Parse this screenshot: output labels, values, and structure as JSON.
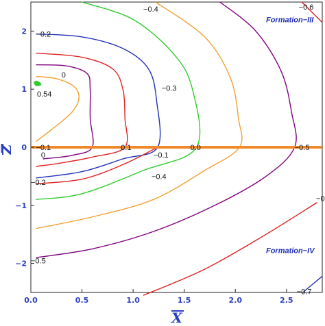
{
  "chart_data": {
    "type": "contour",
    "title": "",
    "xlabel": "X",
    "ylabel": "Z",
    "xlim": [
      0,
      2.85
    ],
    "ylim": [
      -2.5,
      2.5
    ],
    "x_ticks": [
      "0.0",
      "0.5",
      "1.0",
      "1.5",
      "2.0",
      "2.5"
    ],
    "x_tick_values": [
      0,
      0.5,
      1.0,
      1.5,
      2.0,
      2.5
    ],
    "y_ticks": [
      "−2",
      "−1",
      "0",
      "1",
      "2"
    ],
    "y_tick_values": [
      -2,
      -1,
      0,
      1,
      2
    ],
    "annotations": [
      {
        "text": "Formation−III",
        "x": 2.3,
        "y": 2.15
      },
      {
        "text": "Formation−IV",
        "x": 2.3,
        "y": -1.82
      }
    ],
    "boundary_line": {
      "z": 0,
      "color": "#f0892a"
    },
    "series": [
      {
        "label": "0.54",
        "color": "#2ecc2e",
        "points": [
          [
            0.03,
            1.12
          ],
          [
            0.06,
            1.14
          ],
          [
            0.1,
            1.08
          ],
          [
            0.05,
            1.06
          ],
          [
            0.03,
            1.12
          ]
        ],
        "label_at": [
          0.06,
          0.92
        ]
      },
      {
        "label": "0",
        "color": "#f0a030",
        "points": [
          [
            0.05,
            0.1
          ],
          [
            0.2,
            0.3
          ],
          [
            0.4,
            0.6
          ],
          [
            0.47,
            0.85
          ],
          [
            0.42,
            1.05
          ],
          [
            0.25,
            1.18
          ],
          [
            0.05,
            1.22
          ]
        ],
        "label_at": [
          0.3,
          1.25
        ]
      },
      {
        "label": "0",
        "color": "#800080",
        "points": [
          [
            0.05,
            1.42
          ],
          [
            0.35,
            1.4
          ],
          [
            0.55,
            1.27
          ],
          [
            0.58,
            1.0
          ],
          [
            0.58,
            0.5
          ],
          [
            0.6,
            0.0
          ],
          [
            0.4,
            -0.14
          ],
          [
            0.12,
            -0.2
          ]
        ],
        "label_at": [
          0.1,
          -0.13
        ]
      },
      {
        "label": "0.1",
        "color": "#e02020",
        "points": [
          [
            0.05,
            1.62
          ],
          [
            0.5,
            1.55
          ],
          [
            0.8,
            1.35
          ],
          [
            0.9,
            1.0
          ],
          [
            0.92,
            0.5
          ],
          [
            0.92,
            0.0
          ],
          [
            0.6,
            -0.17
          ],
          [
            0.3,
            -0.27
          ],
          [
            0.05,
            -0.33
          ]
        ],
        "label_at": [
          0.88,
          0.0
        ]
      },
      {
        "label": "−0.1",
        "color": "#800080",
        "points": [
          [
            0.05,
            0.0
          ],
          [
            0.0,
            0.0
          ]
        ],
        "label_at": [
          0.0,
          0.0
        ]
      },
      {
        "label": "−0.2",
        "color": "#1f2fb8",
        "points": [
          [
            0.05,
            1.95
          ],
          [
            0.5,
            1.9
          ],
          [
            0.9,
            1.7
          ],
          [
            1.15,
            1.35
          ],
          [
            1.23,
            0.8
          ],
          [
            1.24,
            0.0
          ],
          [
            0.9,
            -0.2
          ],
          [
            0.5,
            -0.42
          ],
          [
            0.05,
            -0.53
          ]
        ],
        "label_at": [
          0.05,
          1.95
        ]
      },
      {
        "label": "−0.2",
        "color": "#e02020",
        "points": [
          [
            0.05,
            -0.63
          ],
          [
            0.5,
            -0.55
          ],
          [
            0.9,
            -0.3
          ],
          [
            1.24,
            0.0
          ]
        ],
        "label_at": [
          0.0,
          -0.6
        ]
      },
      {
        "label": "−0.3",
        "color": "#2ecc2e",
        "points": [
          [
            0.5,
            2.5
          ],
          [
            1.0,
            2.2
          ],
          [
            1.4,
            1.6
          ],
          [
            1.58,
            1.0
          ],
          [
            1.62,
            0.0
          ],
          [
            1.1,
            -0.4
          ],
          [
            0.5,
            -0.8
          ],
          [
            0.05,
            -0.9
          ]
        ],
        "label_at": [
          1.28,
          1.02
        ]
      },
      {
        "label": "0.0",
        "color": "#f0a030",
        "points": [
          [
            1.22,
            2.5
          ],
          [
            1.7,
            1.9
          ],
          [
            1.95,
            1.2
          ],
          [
            2.03,
            0.5
          ],
          [
            2.04,
            0.0
          ],
          [
            1.7,
            -0.4
          ],
          [
            1.2,
            -0.9
          ],
          [
            0.6,
            -1.2
          ],
          [
            0.05,
            -1.4
          ]
        ],
        "label_at": [
          1.56,
          0.0
        ]
      },
      {
        "label": "−0.4",
        "color": "#f0a030",
        "points": [
          [
            1.22,
            2.5
          ]
        ],
        "label_at": [
          1.1,
          2.38
        ]
      },
      {
        "label": "−0.4",
        "color": "#f0a030",
        "points": [
          [
            0.05,
            -1.4
          ]
        ],
        "label_at": [
          1.18,
          -0.5
        ]
      },
      {
        "label": "−0.5",
        "color": "#800080",
        "points": [
          [
            1.85,
            2.5
          ],
          [
            2.2,
            2.0
          ],
          [
            2.45,
            1.3
          ],
          [
            2.55,
            0.6
          ],
          [
            2.58,
            0.0
          ],
          [
            2.3,
            -0.5
          ],
          [
            1.8,
            -1.0
          ],
          [
            1.2,
            -1.45
          ],
          [
            0.6,
            -1.75
          ],
          [
            0.05,
            -1.9
          ]
        ],
        "label_at": [
          2.58,
          0.0
        ]
      },
      {
        "label": "−0.5",
        "color": "#800080",
        "points": [
          [
            0.05,
            -1.9
          ]
        ],
        "label_at": [
          0.0,
          -1.95
        ]
      },
      {
        "label": "−0.6",
        "color": "#e02020",
        "points": [
          [
            2.65,
            2.5
          ],
          [
            2.85,
            2.15
          ]
        ],
        "label_at": [
          2.62,
          2.42
        ]
      },
      {
        "label": "−0.6",
        "color": "#e02020",
        "points": [
          [
            1.1,
            -2.55
          ],
          [
            1.7,
            -2.1
          ],
          [
            2.3,
            -1.5
          ],
          [
            2.8,
            -0.95
          ]
        ],
        "label_at": [
          2.79,
          -0.88
        ]
      },
      {
        "label": "−0.7",
        "color": "#1f2fb8",
        "points": [
          [
            2.66,
            -2.5
          ],
          [
            2.85,
            -2.22
          ]
        ],
        "label_at": [
          2.6,
          -2.48
        ]
      }
    ]
  }
}
